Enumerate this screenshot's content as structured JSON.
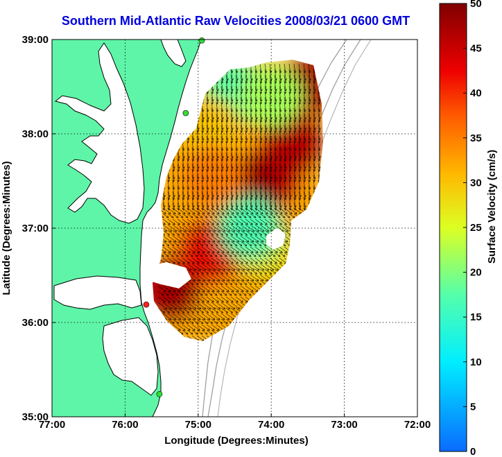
{
  "title": "Southern Mid-Atlantic Raw Velocities 2008/03/21 0600 GMT",
  "xlabel": "Longitude (Degrees:Minutes)",
  "ylabel": "Latitude (Degrees:Minutes)",
  "x_ticks": [
    "77:00",
    "76:00",
    "75:00",
    "74:00",
    "73:00",
    "72:00"
  ],
  "y_ticks": [
    "39:00",
    "38:00",
    "37:00",
    "36:00",
    "35:00"
  ],
  "colorbar": {
    "label": "Surface Velocity (cm/s)",
    "ticks": [
      "0",
      "5",
      "10",
      "15",
      "20",
      "25",
      "30",
      "35",
      "40",
      "45",
      "50"
    ]
  },
  "colors": {
    "land": "#5ef5a8",
    "title": "#0000dd",
    "station_green": "#33dd33",
    "station_red": "#ff2222"
  },
  "chart_data": {
    "type": "heatmap",
    "variable": "surface_velocity",
    "units": "cm/s",
    "xlim": [
      -77,
      -72
    ],
    "ylim": [
      35,
      39
    ],
    "clim": [
      0,
      50
    ],
    "colormap": "jet",
    "regions": [
      {
        "lon": -74.0,
        "lat": 37.55,
        "speed": 45
      },
      {
        "lon": -74.3,
        "lat": 37.4,
        "speed": 48
      },
      {
        "lon": -73.7,
        "lat": 37.9,
        "speed": 46
      },
      {
        "lon": -73.4,
        "lat": 38.55,
        "speed": 47
      },
      {
        "lon": -74.5,
        "lat": 38.45,
        "speed": 18
      },
      {
        "lon": -74.0,
        "lat": 38.4,
        "speed": 22
      },
      {
        "lon": -74.85,
        "lat": 38.05,
        "speed": 30
      },
      {
        "lon": -74.8,
        "lat": 37.55,
        "speed": 35
      },
      {
        "lon": -75.4,
        "lat": 36.35,
        "speed": 47
      },
      {
        "lon": -74.85,
        "lat": 36.75,
        "speed": 42
      },
      {
        "lon": -74.1,
        "lat": 36.8,
        "speed": 27
      },
      {
        "lon": -74.3,
        "lat": 37.0,
        "speed": 17
      }
    ],
    "stations": [
      {
        "lon": -74.95,
        "lat": 38.99,
        "color": "green"
      },
      {
        "lon": -75.17,
        "lat": 38.22,
        "color": "green"
      },
      {
        "lon": -75.71,
        "lat": 36.19,
        "color": "red"
      },
      {
        "lon": -75.53,
        "lat": 35.24,
        "color": "green"
      }
    ]
  }
}
